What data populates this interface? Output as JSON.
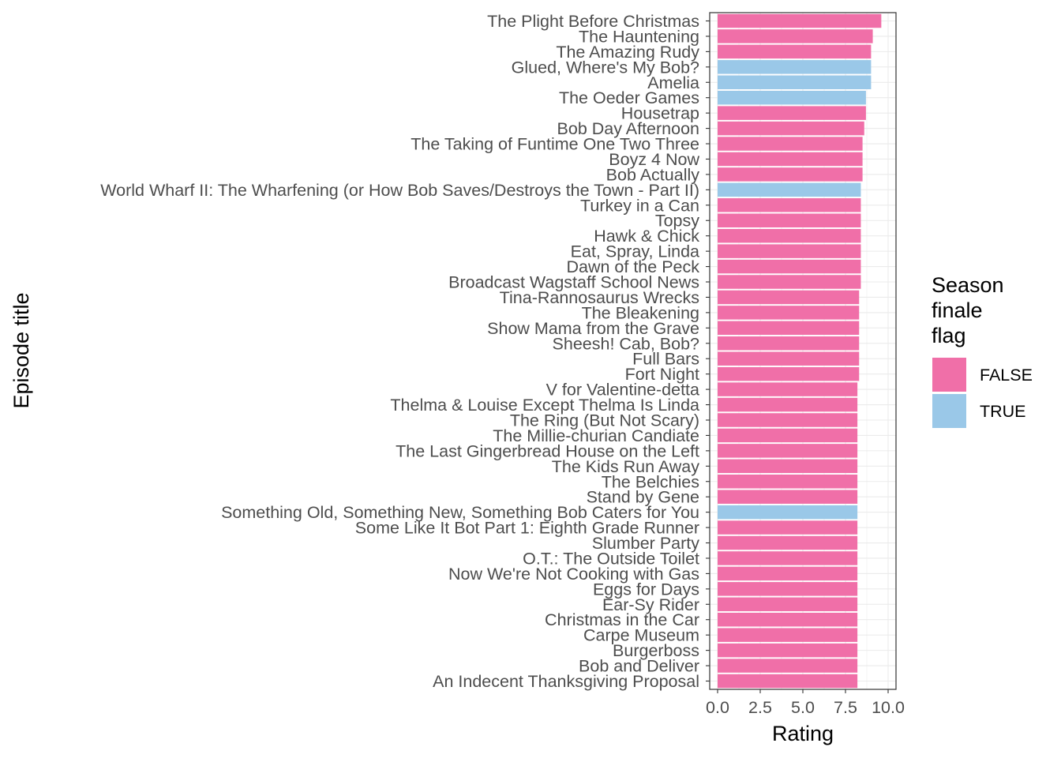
{
  "chart_data": {
    "type": "bar",
    "orientation": "horizontal",
    "xlabel": "Rating",
    "ylabel": "Episode title",
    "xlim": [
      0,
      10
    ],
    "x_ticks": [
      0,
      2.5,
      5,
      7.5,
      10
    ],
    "x_tick_labels": [
      "0.0",
      "2.5",
      "5.0",
      "7.5",
      "10.0"
    ],
    "grid": true,
    "legend": {
      "title": [
        "Season",
        "finale",
        "flag"
      ],
      "placement": "right",
      "entries": [
        {
          "label": "FALSE",
          "color": "#F06FA8"
        },
        {
          "label": "TRUE",
          "color": "#9AC8E8"
        }
      ]
    },
    "categories": [
      "The Plight Before Christmas",
      "The Hauntening",
      "The Amazing Rudy",
      "Glued, Where's My Bob?",
      "Amelia",
      "The Oeder Games",
      "Housetrap",
      "Bob Day Afternoon",
      "The Taking of Funtime One Two Three",
      "Boyz 4 Now",
      "Bob Actually",
      "World Wharf II: The Wharfening (or How Bob Saves/Destroys the Town - Part II)",
      "Turkey in a Can",
      "Topsy",
      "Hawk & Chick",
      "Eat, Spray, Linda",
      "Dawn of the Peck",
      "Broadcast Wagstaff School News",
      "Tina-Rannosaurus Wrecks",
      "The Bleakening",
      "Show Mama from the Grave",
      "Sheesh! Cab, Bob?",
      "Full Bars",
      "Fort Night",
      "V for Valentine-detta",
      "Thelma & Louise Except Thelma Is Linda",
      "The Ring (But Not Scary)",
      "The Millie-churian Candiate",
      "The Last Gingerbread House on the Left",
      "The Kids Run Away",
      "The Belchies",
      "Stand by Gene",
      "Something Old, Something New, Something Bob Caters for You",
      "Some Like It Bot Part 1: Eighth Grade Runner",
      "Slumber Party",
      "O.T.: The Outside Toilet",
      "Now We're Not Cooking with Gas",
      "Eggs for Days",
      "Ear-Sy Rider",
      "Christmas in the Car",
      "Carpe Museum",
      "Burgerboss",
      "Bob and Deliver",
      "An Indecent Thanksgiving Proposal"
    ],
    "values": [
      9.6,
      9.1,
      9.0,
      9.0,
      9.0,
      8.7,
      8.7,
      8.6,
      8.5,
      8.5,
      8.5,
      8.4,
      8.4,
      8.4,
      8.4,
      8.4,
      8.4,
      8.4,
      8.3,
      8.3,
      8.3,
      8.3,
      8.3,
      8.3,
      8.2,
      8.2,
      8.2,
      8.2,
      8.2,
      8.2,
      8.2,
      8.2,
      8.2,
      8.2,
      8.2,
      8.2,
      8.2,
      8.2,
      8.2,
      8.2,
      8.2,
      8.2,
      8.2,
      8.2
    ],
    "finale_flag": [
      "FALSE",
      "FALSE",
      "FALSE",
      "TRUE",
      "TRUE",
      "TRUE",
      "FALSE",
      "FALSE",
      "FALSE",
      "FALSE",
      "FALSE",
      "TRUE",
      "FALSE",
      "FALSE",
      "FALSE",
      "FALSE",
      "FALSE",
      "FALSE",
      "FALSE",
      "FALSE",
      "FALSE",
      "FALSE",
      "FALSE",
      "FALSE",
      "FALSE",
      "FALSE",
      "FALSE",
      "FALSE",
      "FALSE",
      "FALSE",
      "FALSE",
      "FALSE",
      "TRUE",
      "FALSE",
      "FALSE",
      "FALSE",
      "FALSE",
      "FALSE",
      "FALSE",
      "FALSE",
      "FALSE",
      "FALSE",
      "FALSE",
      "FALSE"
    ]
  }
}
